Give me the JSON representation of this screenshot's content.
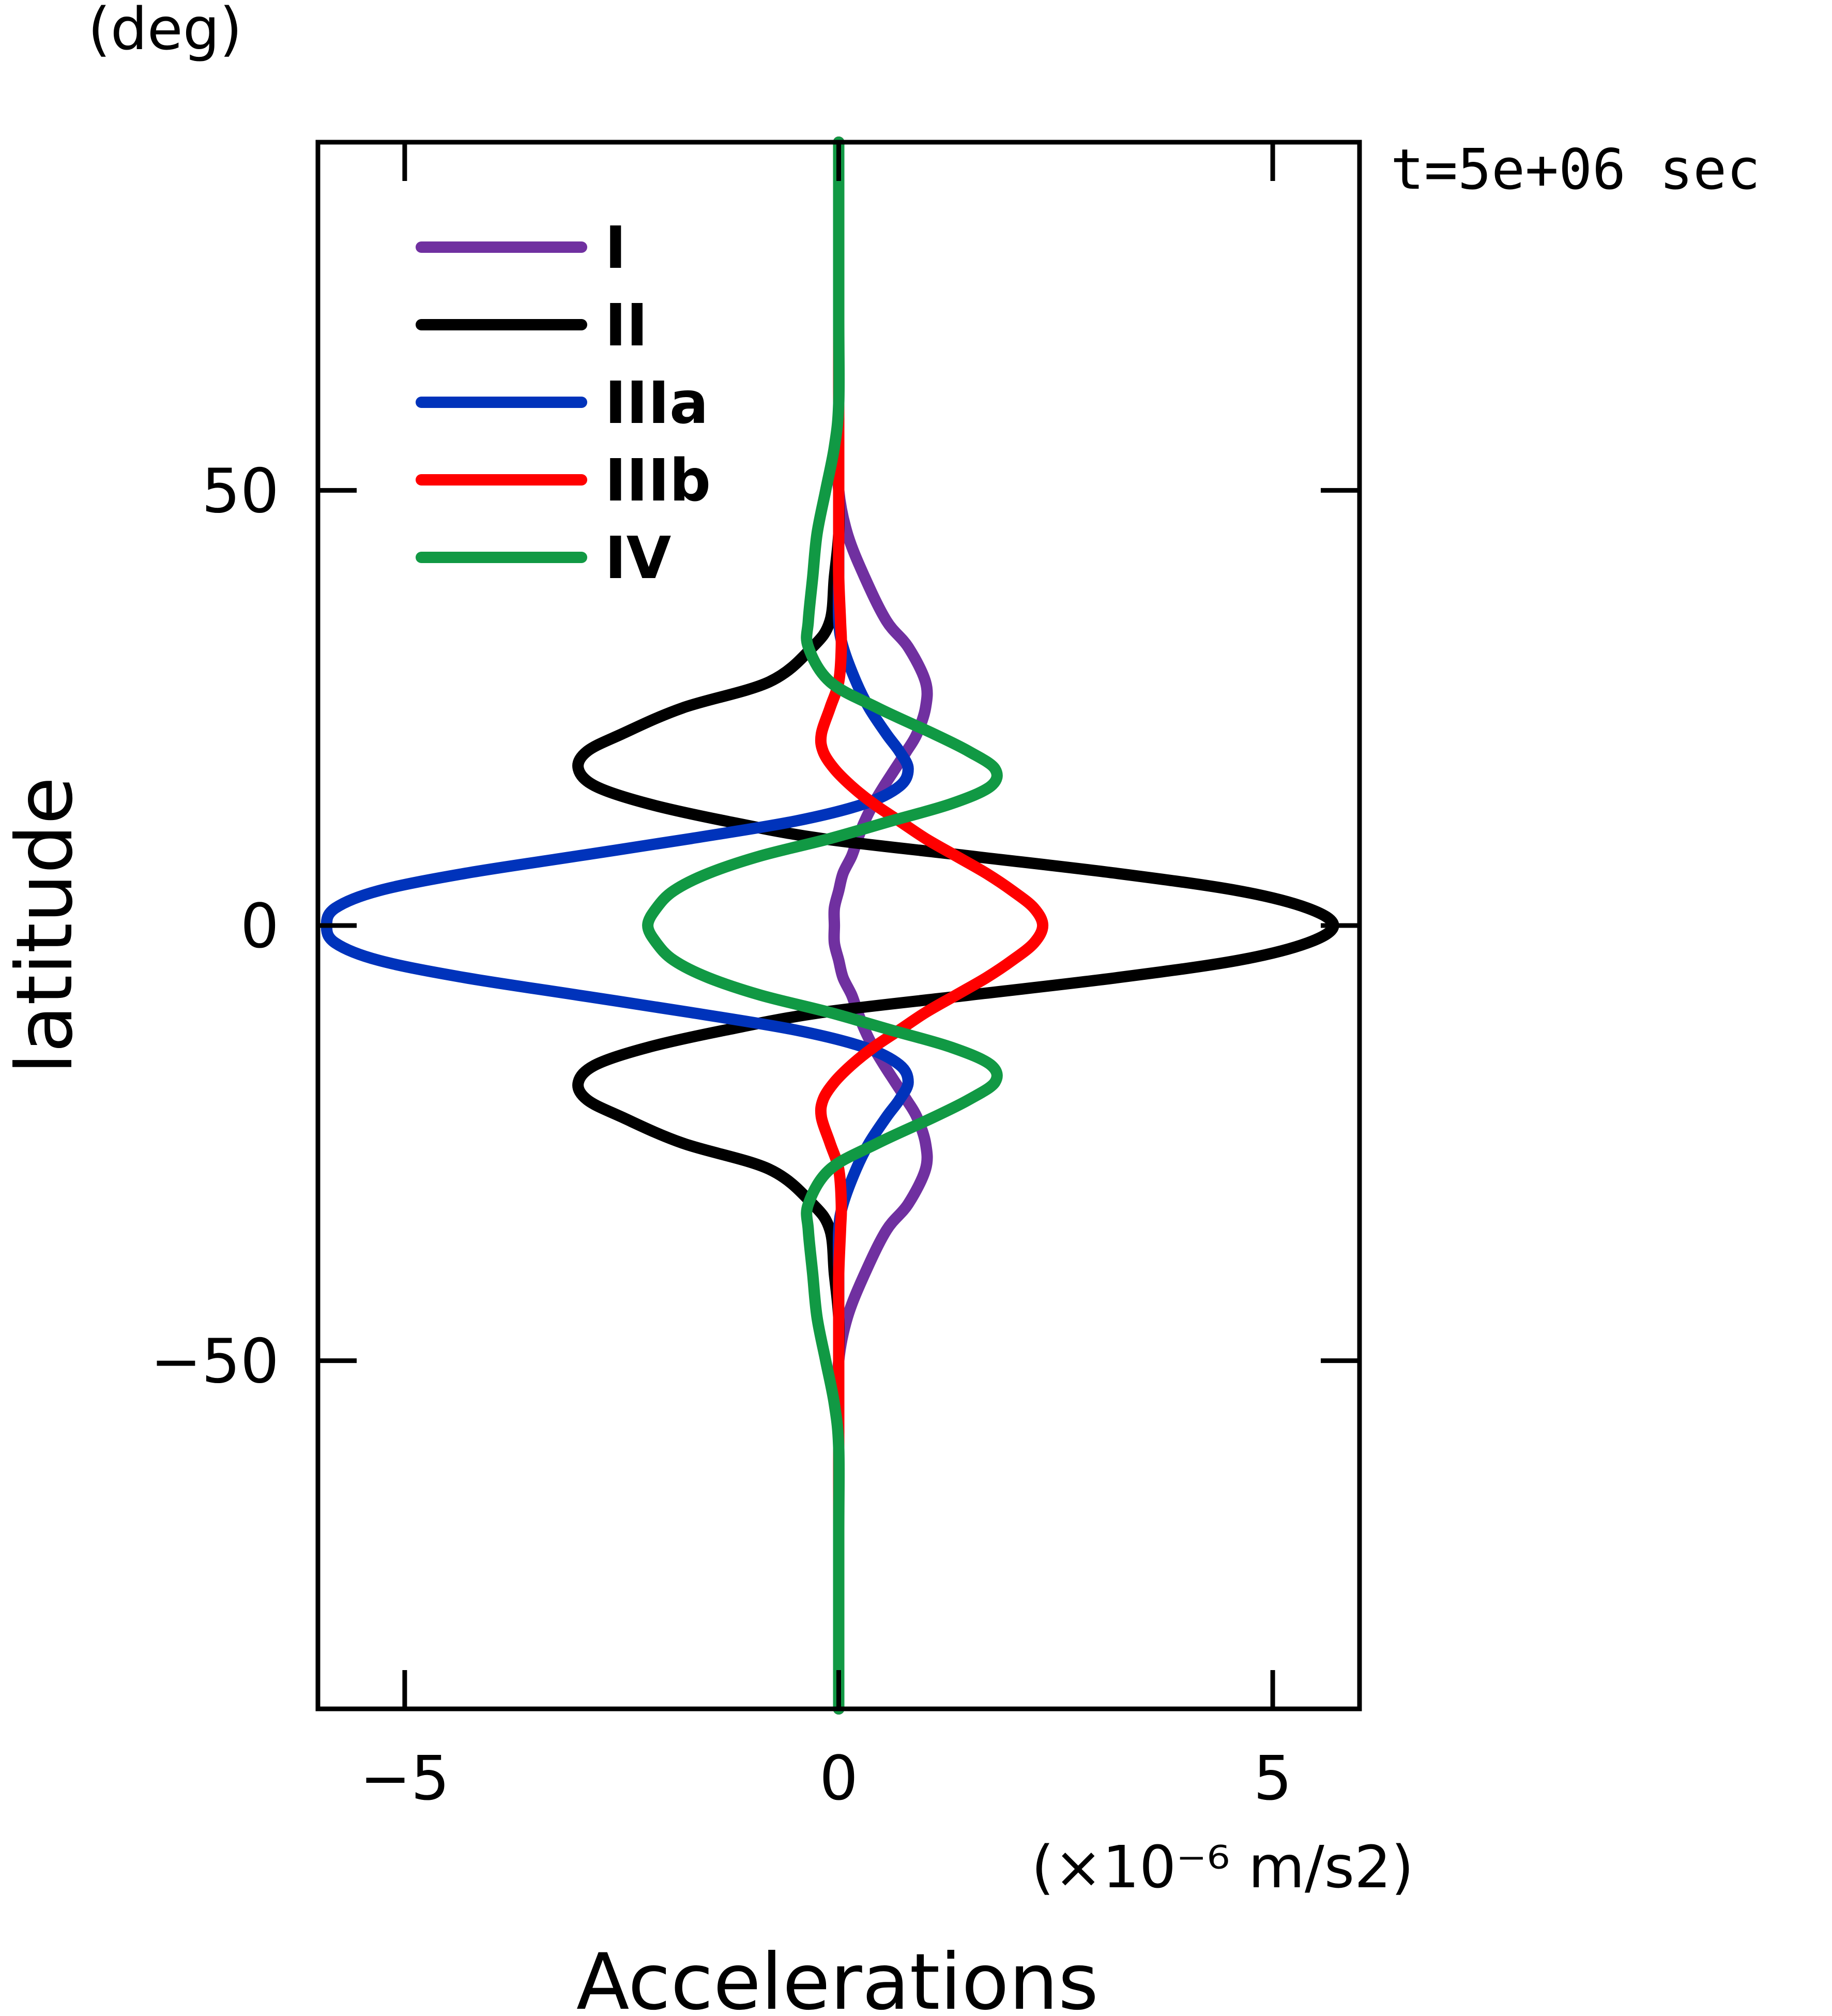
{
  "chart_data": {
    "type": "line",
    "orientation": "x-value-vs-latitude",
    "xlabel": "Accelerations",
    "xunits": "(×10⁻⁶ m/s2)",
    "ylabel": "latitude",
    "yunits": "(deg)",
    "annotation": "t=5e+06 sec",
    "xlim": [
      -6,
      6
    ],
    "ylim": [
      -90,
      90
    ],
    "xticks": [
      -5,
      0,
      5
    ],
    "xtick_labels": [
      "−5",
      "0",
      "5"
    ],
    "yticks": [
      -50,
      0,
      50
    ],
    "ytick_labels": [
      "−50",
      "0",
      "50"
    ],
    "grid": false,
    "legend_position": "top-left",
    "latitude": [
      -90,
      -70,
      -60,
      -55,
      -50,
      -45,
      -40,
      -35,
      -32,
      -28,
      -25,
      -22,
      -20,
      -18,
      -16,
      -14,
      -12,
      -10,
      -8,
      -6,
      -4,
      -2,
      0,
      2,
      4,
      6,
      8,
      10,
      12,
      14,
      16,
      18,
      20,
      22,
      25,
      28,
      32,
      35,
      40,
      45,
      50,
      55,
      60,
      70,
      90
    ],
    "series": [
      {
        "name": "I",
        "color": "#7030a0",
        "values": [
          0,
          0,
          0,
          0,
          0,
          0.1,
          0.3,
          0.55,
          0.8,
          1.0,
          1.0,
          0.9,
          0.78,
          0.65,
          0.52,
          0.4,
          0.3,
          0.22,
          0.15,
          0.05,
          0.0,
          -0.05,
          -0.05,
          -0.05,
          0.0,
          0.05,
          0.15,
          0.22,
          0.3,
          0.4,
          0.52,
          0.65,
          0.78,
          0.9,
          1.0,
          1.0,
          0.8,
          0.55,
          0.3,
          0.1,
          0,
          0,
          0,
          0,
          0
        ]
      },
      {
        "name": "II",
        "color": "#000000",
        "values": [
          0,
          0,
          0,
          0,
          0,
          0,
          -0.05,
          -0.1,
          -0.3,
          -0.8,
          -1.8,
          -2.5,
          -2.9,
          -3.0,
          -2.8,
          -2.2,
          -1.3,
          -0.2,
          1.5,
          3.2,
          4.6,
          5.4,
          5.7,
          5.4,
          4.6,
          3.2,
          1.5,
          -0.2,
          -1.3,
          -2.2,
          -2.8,
          -3.0,
          -2.9,
          -2.5,
          -1.8,
          -0.8,
          -0.3,
          -0.1,
          -0.05,
          0,
          0,
          0,
          0,
          0,
          0
        ]
      },
      {
        "name": "IIIa",
        "color": "#0033bb",
        "values": [
          0,
          0,
          0,
          0,
          0,
          0,
          0,
          0.0,
          0.05,
          0.2,
          0.35,
          0.55,
          0.7,
          0.8,
          0.7,
          0.3,
          -0.5,
          -1.7,
          -3.0,
          -4.3,
          -5.3,
          -5.8,
          -5.9,
          -5.8,
          -5.3,
          -4.3,
          -3.0,
          -1.7,
          -0.5,
          0.3,
          0.7,
          0.8,
          0.7,
          0.55,
          0.35,
          0.2,
          0.05,
          0.0,
          0,
          0,
          0,
          0,
          0,
          0,
          0
        ]
      },
      {
        "name": "IIIb",
        "color": "#ff0000",
        "values": [
          0,
          0,
          0,
          0,
          0,
          0,
          0,
          0.02,
          0.03,
          0.0,
          -0.1,
          -0.2,
          -0.18,
          -0.05,
          0.15,
          0.4,
          0.7,
          1.0,
          1.35,
          1.7,
          2.0,
          2.25,
          2.35,
          2.25,
          2.0,
          1.7,
          1.35,
          1.0,
          0.7,
          0.4,
          0.15,
          -0.05,
          -0.18,
          -0.2,
          -0.1,
          0.0,
          0.03,
          0.02,
          0,
          0,
          0,
          0,
          0,
          0,
          0
        ]
      },
      {
        "name": "IV",
        "color": "#119944",
        "values": [
          0,
          0,
          0,
          -0.05,
          -0.15,
          -0.25,
          -0.3,
          -0.35,
          -0.35,
          -0.1,
          0.45,
          1.1,
          1.5,
          1.8,
          1.75,
          1.3,
          0.6,
          -0.1,
          -0.9,
          -1.5,
          -1.9,
          -2.1,
          -2.2,
          -2.1,
          -1.9,
          -1.5,
          -0.9,
          -0.1,
          0.6,
          1.3,
          1.75,
          1.8,
          1.5,
          1.1,
          0.45,
          -0.1,
          -0.35,
          -0.35,
          -0.3,
          -0.25,
          -0.15,
          -0.05,
          0,
          0,
          0
        ]
      }
    ]
  }
}
